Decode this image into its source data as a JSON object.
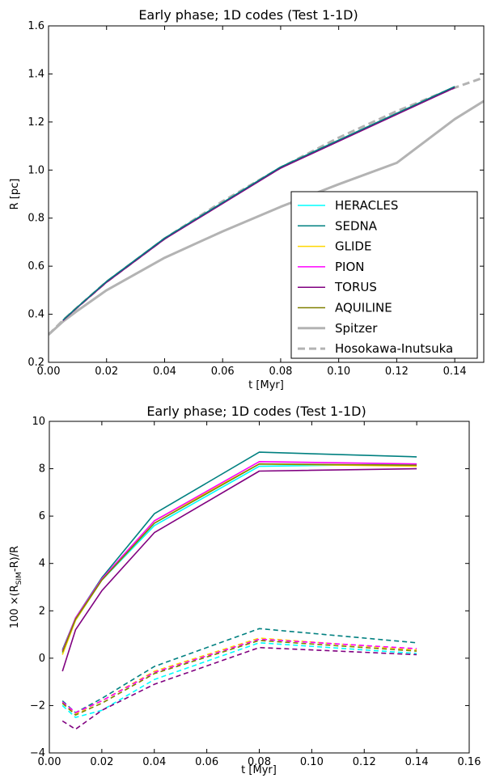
{
  "chart_data": [
    {
      "type": "line",
      "title": "Early phase; 1D codes (Test 1-1D)",
      "xlabel": "t [Myr]",
      "ylabel": "R [pc]",
      "xlim": [
        0.0,
        0.15
      ],
      "ylim": [
        0.2,
        1.6
      ],
      "xticks": [
        0.0,
        0.02,
        0.04,
        0.06,
        0.08,
        0.1,
        0.12,
        0.14
      ],
      "xtick_labels": [
        "0.00",
        "0.02",
        "0.04",
        "0.06",
        "0.08",
        "0.10",
        "0.12",
        "0.14"
      ],
      "yticks": [
        0.2,
        0.4,
        0.6,
        0.8,
        1.0,
        1.2,
        1.4,
        1.6
      ],
      "ytick_labels": [
        "0.2",
        "0.4",
        "0.6",
        "0.8",
        "1.0",
        "1.2",
        "1.4",
        "1.6"
      ],
      "grid": false,
      "legend_position": "bottom-right",
      "series": [
        {
          "name": "HERACLES",
          "color": "#00ffff",
          "dash": "solid",
          "x": [
            0.005,
            0.01,
            0.02,
            0.04,
            0.08,
            0.14
          ],
          "y": [
            0.375,
            0.43,
            0.535,
            0.715,
            1.01,
            1.345
          ]
        },
        {
          "name": "SEDNA",
          "color": "#008080",
          "dash": "solid",
          "x": [
            0.005,
            0.01,
            0.02,
            0.04,
            0.08,
            0.14
          ],
          "y": [
            0.376,
            0.431,
            0.537,
            0.717,
            1.013,
            1.348
          ]
        },
        {
          "name": "GLIDE",
          "color": "#ffd700",
          "dash": "solid",
          "x": [
            0.005,
            0.01,
            0.02,
            0.04,
            0.08,
            0.14
          ],
          "y": [
            0.375,
            0.43,
            0.535,
            0.715,
            1.01,
            1.345
          ]
        },
        {
          "name": "PION",
          "color": "#ff00ff",
          "dash": "solid",
          "x": [
            0.005,
            0.01,
            0.02,
            0.04,
            0.08,
            0.14
          ],
          "y": [
            0.375,
            0.43,
            0.535,
            0.715,
            1.01,
            1.345
          ]
        },
        {
          "name": "TORUS",
          "color": "#800080",
          "dash": "solid",
          "x": [
            0.005,
            0.01,
            0.02,
            0.04,
            0.08,
            0.14
          ],
          "y": [
            0.374,
            0.429,
            0.533,
            0.713,
            1.008,
            1.343
          ]
        },
        {
          "name": "AQUILINE",
          "color": "#808000",
          "dash": "solid",
          "x": [
            0.005,
            0.01,
            0.02,
            0.04,
            0.08,
            0.14
          ],
          "y": [
            0.375,
            0.43,
            0.535,
            0.715,
            1.01,
            1.345
          ]
        },
        {
          "name": "Spitzer",
          "color": "#b3b3b3",
          "dash": "solid",
          "x": [
            0.0,
            0.005,
            0.01,
            0.02,
            0.04,
            0.06,
            0.08,
            0.1,
            0.12,
            0.14,
            0.15
          ],
          "y": [
            0.315,
            0.37,
            0.415,
            0.5,
            0.635,
            0.745,
            0.847,
            0.941,
            1.03,
            1.212,
            1.287
          ]
        },
        {
          "name": "Hosokawa-Inutsuka",
          "color": "#b3b3b3",
          "dash": "dashed",
          "x": [
            0.0,
            0.005,
            0.01,
            0.02,
            0.04,
            0.06,
            0.08,
            0.1,
            0.12,
            0.14,
            0.15
          ],
          "y": [
            0.315,
            0.375,
            0.43,
            0.535,
            0.715,
            0.87,
            1.01,
            1.135,
            1.245,
            1.343,
            1.385
          ]
        }
      ]
    },
    {
      "type": "line",
      "title": "Early phase; 1D codes (Test 1-1D)",
      "xlabel": "t [Myr]",
      "ylabel_pre": "100 ×(R",
      "ylabel_sub": "SIM",
      "ylabel_post": "-R)/R",
      "xlim": [
        0.0,
        0.16
      ],
      "ylim": [
        -4,
        10
      ],
      "xticks": [
        0.0,
        0.02,
        0.04,
        0.06,
        0.08,
        0.1,
        0.12,
        0.14,
        0.16
      ],
      "xtick_labels": [
        "0.00",
        "0.02",
        "0.04",
        "0.06",
        "0.08",
        "0.10",
        "0.12",
        "0.14",
        "0.16"
      ],
      "yticks": [
        -4,
        -2,
        0,
        2,
        4,
        6,
        8,
        10
      ],
      "ytick_labels": [
        "−4",
        "−2",
        "0",
        "2",
        "4",
        "6",
        "8",
        "10"
      ],
      "grid": false,
      "x": [
        0.005,
        0.01,
        0.02,
        0.04,
        0.08,
        0.14
      ],
      "series": [
        {
          "color": "#00ffff",
          "dash": "solid",
          "values": [
            0.2,
            1.6,
            3.3,
            5.6,
            8.1,
            8.2
          ]
        },
        {
          "color": "#008080",
          "dash": "solid",
          "values": [
            0.35,
            1.7,
            3.4,
            6.1,
            8.7,
            8.5
          ]
        },
        {
          "color": "#ffd700",
          "dash": "solid",
          "values": [
            0.15,
            1.6,
            3.3,
            5.8,
            8.2,
            8.1
          ]
        },
        {
          "color": "#ff00ff",
          "dash": "solid",
          "values": [
            0.3,
            1.7,
            3.35,
            5.8,
            8.3,
            8.2
          ]
        },
        {
          "color": "#800080",
          "dash": "solid",
          "values": [
            -0.55,
            1.2,
            2.85,
            5.3,
            7.9,
            8.0
          ]
        },
        {
          "color": "#808000",
          "dash": "solid",
          "values": [
            0.25,
            1.65,
            3.3,
            5.7,
            8.2,
            8.15
          ]
        },
        {
          "color": "#00ffff",
          "dash": "dashed",
          "values": [
            -2.0,
            -2.5,
            -2.2,
            -0.9,
            0.65,
            0.2
          ]
        },
        {
          "color": "#008080",
          "dash": "dashed",
          "values": [
            -1.8,
            -2.3,
            -1.7,
            -0.35,
            1.25,
            0.65
          ]
        },
        {
          "color": "#ffd700",
          "dash": "dashed",
          "values": [
            -1.9,
            -2.35,
            -1.8,
            -0.55,
            0.85,
            0.35
          ]
        },
        {
          "color": "#ff00ff",
          "dash": "dashed",
          "values": [
            -1.85,
            -2.3,
            -1.8,
            -0.6,
            0.8,
            0.4
          ]
        },
        {
          "color": "#800080",
          "dash": "dashed",
          "values": [
            -2.65,
            -3.0,
            -2.2,
            -1.1,
            0.45,
            0.15
          ]
        },
        {
          "color": "#808000",
          "dash": "dashed",
          "values": [
            -1.9,
            -2.4,
            -1.9,
            -0.65,
            0.75,
            0.3
          ]
        }
      ]
    }
  ]
}
